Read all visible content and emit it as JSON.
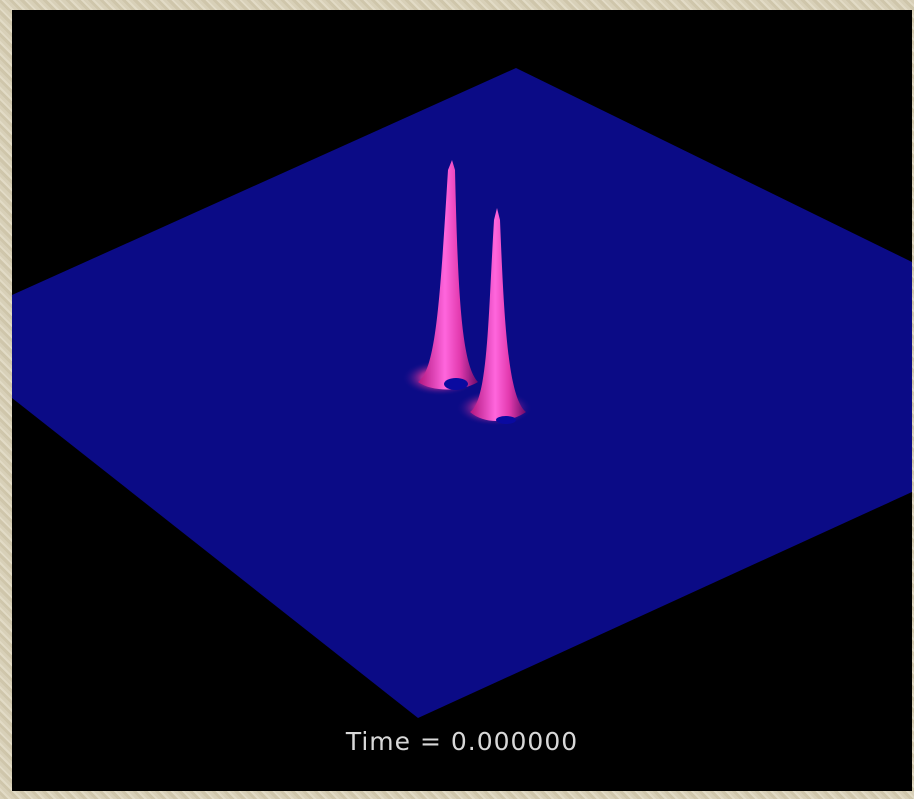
{
  "caption": "Time = 0.000000"
}
